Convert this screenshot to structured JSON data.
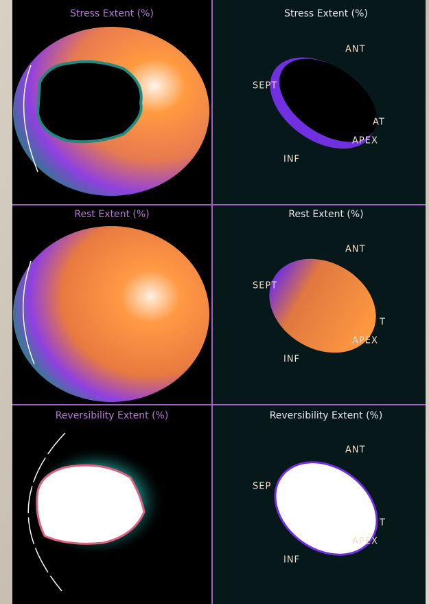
{
  "panels": [
    {
      "map_title": "Stress Extent (%)",
      "view_title": "Stress Extent (%)",
      "labels": {
        "ant": "ANT",
        "sept": "SEPT",
        "lat": "AT",
        "apex": "APEX",
        "inf": "INF"
      }
    },
    {
      "map_title": "Rest Extent (%)",
      "view_title": "Rest Extent (%)",
      "labels": {
        "ant": "ANT",
        "sept": "SEPT",
        "lat": "T",
        "apex": "APEX",
        "inf": "INF"
      }
    },
    {
      "map_title": "Reversibility Extent (%)",
      "view_title": "Reversibility Extent (%)",
      "labels": {
        "ant": "ANT",
        "sept": "SEP",
        "lat": "T",
        "apex": "APEX",
        "inf": "INF"
      }
    }
  ]
}
